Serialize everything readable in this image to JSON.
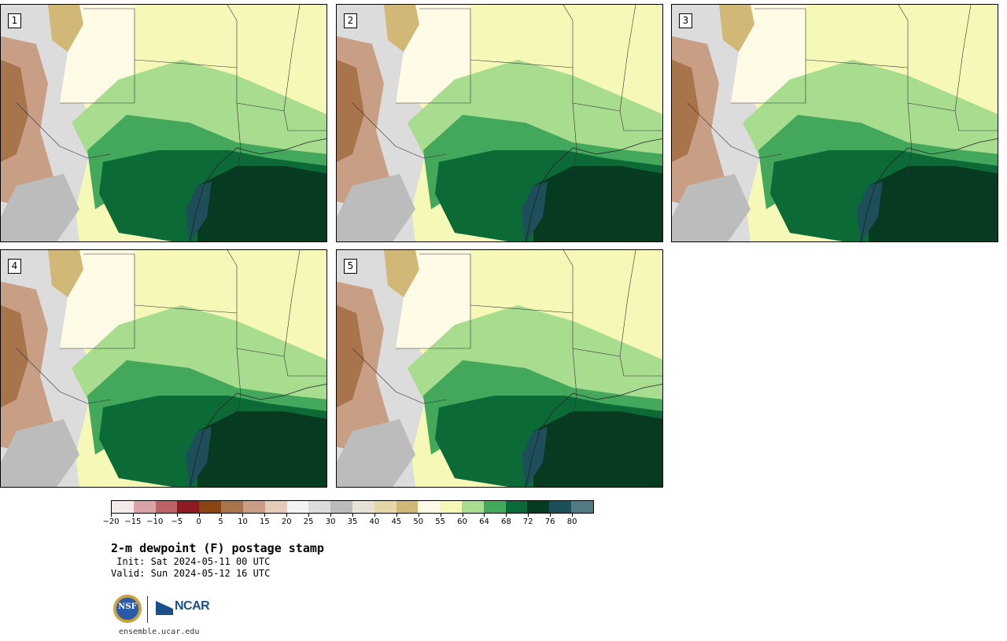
{
  "panels": [
    {
      "label": "1"
    },
    {
      "label": "2"
    },
    {
      "label": "3"
    },
    {
      "label": "4"
    },
    {
      "label": "5"
    }
  ],
  "colorbar": {
    "tick_labels": [
      "−20",
      "−15",
      "−10",
      "−5",
      "0",
      "5",
      "10",
      "15",
      "20",
      "25",
      "30",
      "35",
      "40",
      "45",
      "50",
      "55",
      "60",
      "64",
      "68",
      "72",
      "76",
      "80"
    ],
    "colors": [
      "#f5eaea",
      "#d9a3a7",
      "#bb6266",
      "#8e1a26",
      "#8a4412",
      "#a8744c",
      "#c89e84",
      "#e6cbbb",
      "#f3f3f3",
      "#dcdcdc",
      "#bcbcbc",
      "#e6e3d6",
      "#e5d7aa",
      "#d2b877",
      "#fffbe6",
      "#f6f8b7",
      "#a8dc8f",
      "#43a75c",
      "#0b6a36",
      "#063b22",
      "#1d4f5a",
      "#4f7b82"
    ]
  },
  "title": "2-m dewpoint (F) postage stamp",
  "init": " Init: Sat 2024-05-11 00 UTC",
  "valid": "Valid: Sun 2024-05-12 16 UTC",
  "footer": {
    "nsf_logo": "NSF",
    "ncar_logo": "NCAR",
    "url": "ensemble.ucar.edu"
  }
}
